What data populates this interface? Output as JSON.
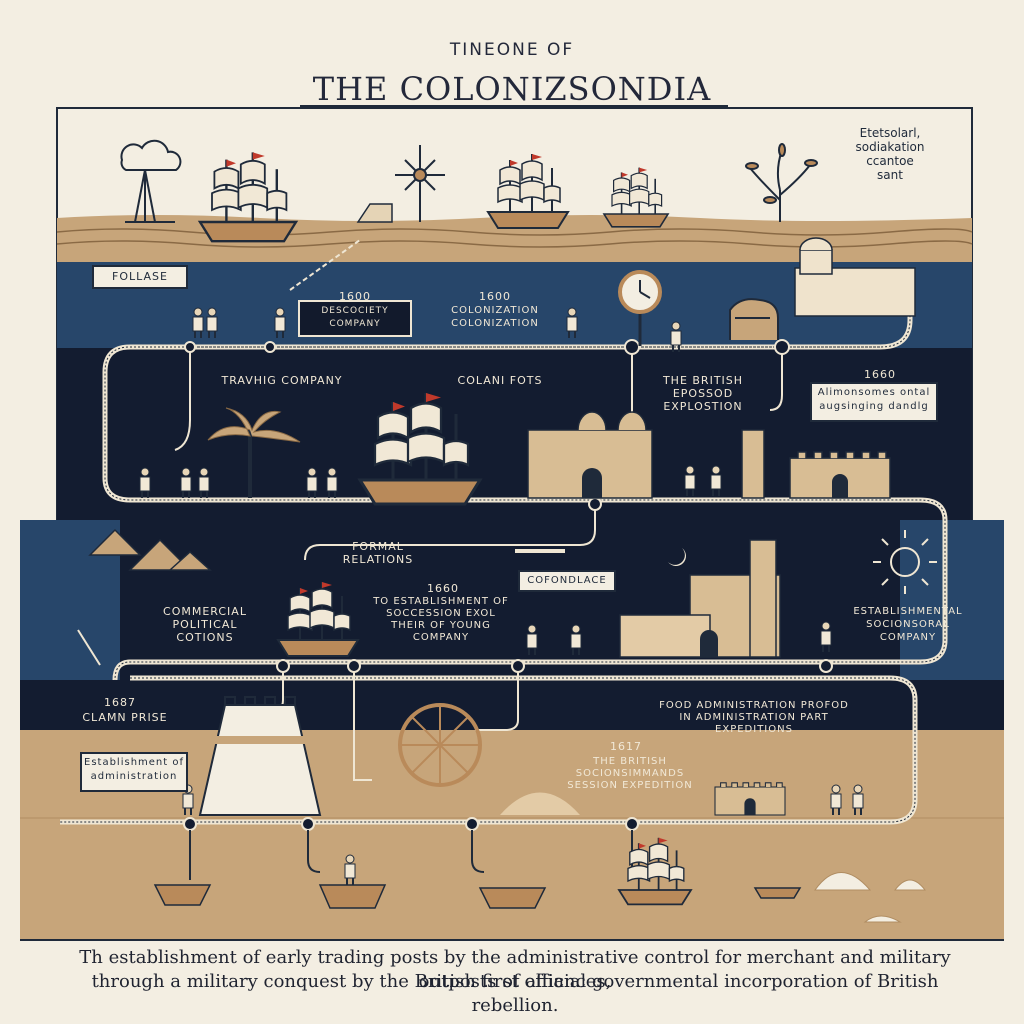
{
  "header": {
    "kicker": "TINEONE OF",
    "title": "THE COLONIZSONDIA"
  },
  "corner_note": [
    "Etetsolarl,",
    "sodiakation",
    "ccantoe",
    "sant"
  ],
  "labels": {
    "emblem_box": "FOLLASE",
    "y1600a": "1600",
    "dc_company": "DESCOCIETY COMPANY",
    "y1600b": "1600",
    "colonization": "COLONIZATION COLONIZATION",
    "trading_company": "TRAVHIG COMPANY",
    "colani_fots": "COLANI FOTS",
    "british_expl": "THE BRITISH EPOSSOD EXPLOSTION",
    "y1660": "1660",
    "alliance_box": "Alimonsomes ontal augsinging dandlg",
    "formal_relations": "FORMAL RELATIONS",
    "y1660b": "1660",
    "establishment": "TO ESTABLISHMENT OF SOCCESSION EXOL THEIR OF YOUNG COMPANY",
    "coronlace_box": "COFONDLACE",
    "commercial_left": "COMMERCIAL POLITICAL COTIONS",
    "right_bank": "ESTABLISHMENTAL SOCIONSORAL COMPANY",
    "y1687": "1687",
    "clamn_prise": "CLAMN PRISE",
    "bottom_box": "Establishment of administration",
    "food_admin": "FOOD ADMINISTRATION PROFOD IN ADMINISTRATION PART EXPEDITIONS",
    "y1617": "1617",
    "british_exp2": "THE BRITISH SOCIONSIMMANDS SESSION EXPEDITION"
  },
  "caption": [
    "Th establishment of early trading posts by the administrative control for merchant and military outposts of alliances,",
    "through a military conquest by the British first official governmental incorporation of British rebellion."
  ],
  "colors": {
    "navy": "#131c30",
    "sea": "#27466a",
    "sand": "#c7a57a",
    "cream": "#f3eee2",
    "line": "#efe6d3"
  },
  "icons": [
    "ship-icon",
    "fort-icon",
    "palm-icon",
    "sun-icon",
    "moon-icon",
    "clock-icon",
    "wheel-icon",
    "pyramid-icon",
    "tree-icon",
    "cloud-icon",
    "windmill-icon",
    "person-icon",
    "elephant-icon",
    "boat-icon"
  ]
}
